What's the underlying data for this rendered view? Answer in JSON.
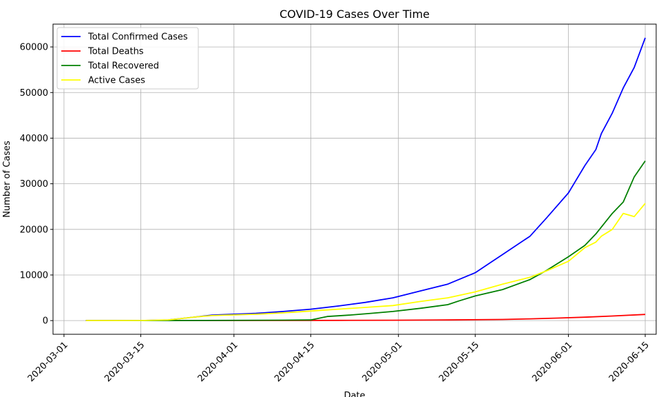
{
  "chart_data": {
    "type": "line",
    "title": "COVID-19 Cases Over Time",
    "xlabel": "Date",
    "ylabel": "Number of Cases",
    "xlim": [
      "2020-02-28",
      "2020-06-17"
    ],
    "ylim": [
      -3000,
      65000
    ],
    "xticks": [
      "2020-03-01",
      "2020-03-15",
      "2020-04-01",
      "2020-04-15",
      "2020-05-01",
      "2020-05-15",
      "2020-06-01",
      "2020-06-15"
    ],
    "yticks": [
      0,
      10000,
      20000,
      30000,
      40000,
      50000,
      60000
    ],
    "grid": true,
    "legend_position": "top-left",
    "series": [
      {
        "name": "Total Confirmed Cases",
        "color": "#0000ff",
        "points": [
          [
            "2020-03-05",
            0
          ],
          [
            "2020-03-10",
            0
          ],
          [
            "2020-03-15",
            20
          ],
          [
            "2020-03-20",
            150
          ],
          [
            "2020-03-25",
            800
          ],
          [
            "2020-03-28",
            1200
          ],
          [
            "2020-04-01",
            1400
          ],
          [
            "2020-04-05",
            1600
          ],
          [
            "2020-04-10",
            2000
          ],
          [
            "2020-04-15",
            2500
          ],
          [
            "2020-04-20",
            3200
          ],
          [
            "2020-04-25",
            4000
          ],
          [
            "2020-04-30",
            5000
          ],
          [
            "2020-05-05",
            6500
          ],
          [
            "2020-05-10",
            8000
          ],
          [
            "2020-05-15",
            10500
          ],
          [
            "2020-05-20",
            14500
          ],
          [
            "2020-05-25",
            18500
          ],
          [
            "2020-05-28",
            22500
          ],
          [
            "2020-06-01",
            28000
          ],
          [
            "2020-06-04",
            34000
          ],
          [
            "2020-06-06",
            37500
          ],
          [
            "2020-06-07",
            41000
          ],
          [
            "2020-06-09",
            45500
          ],
          [
            "2020-06-11",
            51000
          ],
          [
            "2020-06-13",
            55500
          ],
          [
            "2020-06-15",
            62000
          ]
        ]
      },
      {
        "name": "Total Deaths",
        "color": "#ff0000",
        "points": [
          [
            "2020-03-05",
            0
          ],
          [
            "2020-03-20",
            0
          ],
          [
            "2020-04-10",
            20
          ],
          [
            "2020-04-20",
            50
          ],
          [
            "2020-04-30",
            90
          ],
          [
            "2020-05-10",
            150
          ],
          [
            "2020-05-20",
            250
          ],
          [
            "2020-05-25",
            380
          ],
          [
            "2020-05-30",
            550
          ],
          [
            "2020-06-04",
            750
          ],
          [
            "2020-06-09",
            1000
          ],
          [
            "2020-06-15",
            1350
          ]
        ]
      },
      {
        "name": "Total Recovered",
        "color": "#008000",
        "points": [
          [
            "2020-03-05",
            0
          ],
          [
            "2020-03-20",
            0
          ],
          [
            "2020-04-10",
            100
          ],
          [
            "2020-04-15",
            150
          ],
          [
            "2020-04-18",
            900
          ],
          [
            "2020-04-22",
            1200
          ],
          [
            "2020-04-26",
            1600
          ],
          [
            "2020-04-30",
            2000
          ],
          [
            "2020-05-05",
            2700
          ],
          [
            "2020-05-10",
            3500
          ],
          [
            "2020-05-12",
            4300
          ],
          [
            "2020-05-15",
            5400
          ],
          [
            "2020-05-20",
            6800
          ],
          [
            "2020-05-25",
            9000
          ],
          [
            "2020-05-28",
            11000
          ],
          [
            "2020-06-01",
            14000
          ],
          [
            "2020-06-04",
            16500
          ],
          [
            "2020-06-06",
            19000
          ],
          [
            "2020-06-09",
            23500
          ],
          [
            "2020-06-11",
            26000
          ],
          [
            "2020-06-13",
            31500
          ],
          [
            "2020-06-15",
            35000
          ]
        ]
      },
      {
        "name": "Active Cases",
        "color": "#ffff00",
        "points": [
          [
            "2020-03-05",
            0
          ],
          [
            "2020-03-10",
            0
          ],
          [
            "2020-03-15",
            20
          ],
          [
            "2020-03-20",
            150
          ],
          [
            "2020-03-25",
            800
          ],
          [
            "2020-03-28",
            1100
          ],
          [
            "2020-04-01",
            1250
          ],
          [
            "2020-04-05",
            1400
          ],
          [
            "2020-04-10",
            1700
          ],
          [
            "2020-04-15",
            2100
          ],
          [
            "2020-04-20",
            2500
          ],
          [
            "2020-04-25",
            2900
          ],
          [
            "2020-04-30",
            3300
          ],
          [
            "2020-05-05",
            4200
          ],
          [
            "2020-05-10",
            5000
          ],
          [
            "2020-05-15",
            6300
          ],
          [
            "2020-05-20",
            8000
          ],
          [
            "2020-05-25",
            9500
          ],
          [
            "2020-05-28",
            10900
          ],
          [
            "2020-06-01",
            13000
          ],
          [
            "2020-06-04",
            16000
          ],
          [
            "2020-06-06",
            17200
          ],
          [
            "2020-06-07",
            18500
          ],
          [
            "2020-06-09",
            20000
          ],
          [
            "2020-06-11",
            23500
          ],
          [
            "2020-06-13",
            22800
          ],
          [
            "2020-06-15",
            25700
          ]
        ]
      }
    ]
  }
}
